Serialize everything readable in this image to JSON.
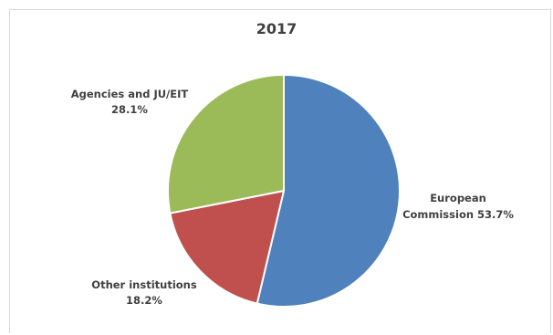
{
  "chart_data": {
    "type": "pie",
    "title": "2017",
    "start_angle_deg": 0,
    "direction": "clockwise",
    "slices": [
      {
        "label": "European Commission",
        "value": 53.7,
        "display": "53.7%",
        "color": "#4f81bd"
      },
      {
        "label": "Other institutions",
        "value": 18.2,
        "display": "18.2%",
        "color": "#c0504d"
      },
      {
        "label": "Agencies and JU/EIT",
        "value": 28.1,
        "display": "28.1%",
        "color": "#9bbb59"
      }
    ]
  }
}
